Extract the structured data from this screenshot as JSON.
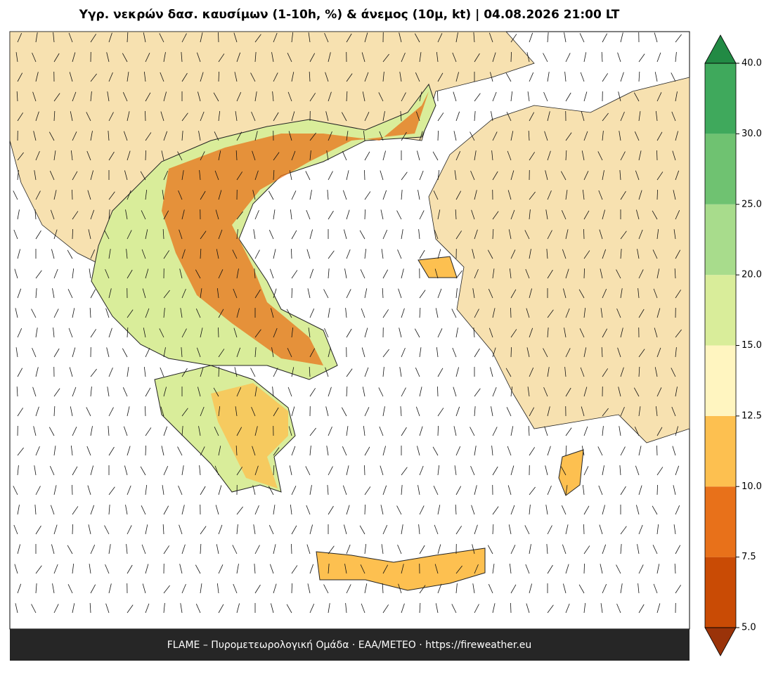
{
  "title": "Υγρ. νεκρών δασ. καυσίμων (1-10h, %) & άνεμος (10μ, kt)  |  04.08.2026 21:00 LT",
  "footer": "FLAME – Πυρομετεωρολογική Ομάδα · ΕΑΑ/METEO · https://fireweather.eu",
  "colorbar": {
    "ticks": [
      {
        "value": 5,
        "label": "5.0"
      },
      {
        "value": 7.5,
        "label": "7.5"
      },
      {
        "value": 10,
        "label": "10.0"
      },
      {
        "value": 12.5,
        "label": "12.5"
      },
      {
        "value": 15,
        "label": "15.0"
      },
      {
        "value": 20,
        "label": "20.0"
      },
      {
        "value": 25,
        "label": "25.0"
      },
      {
        "value": 30,
        "label": "30.0"
      },
      {
        "value": 40,
        "label": "40.0"
      }
    ],
    "colors": [
      "#c94b05",
      "#e8711a",
      "#fdc050",
      "#fff5c0",
      "#d9ed9a",
      "#a8dc8c",
      "#6fc271",
      "#3fa95c"
    ],
    "under_color": "#9a3309",
    "over_color": "#228a44"
  }
}
